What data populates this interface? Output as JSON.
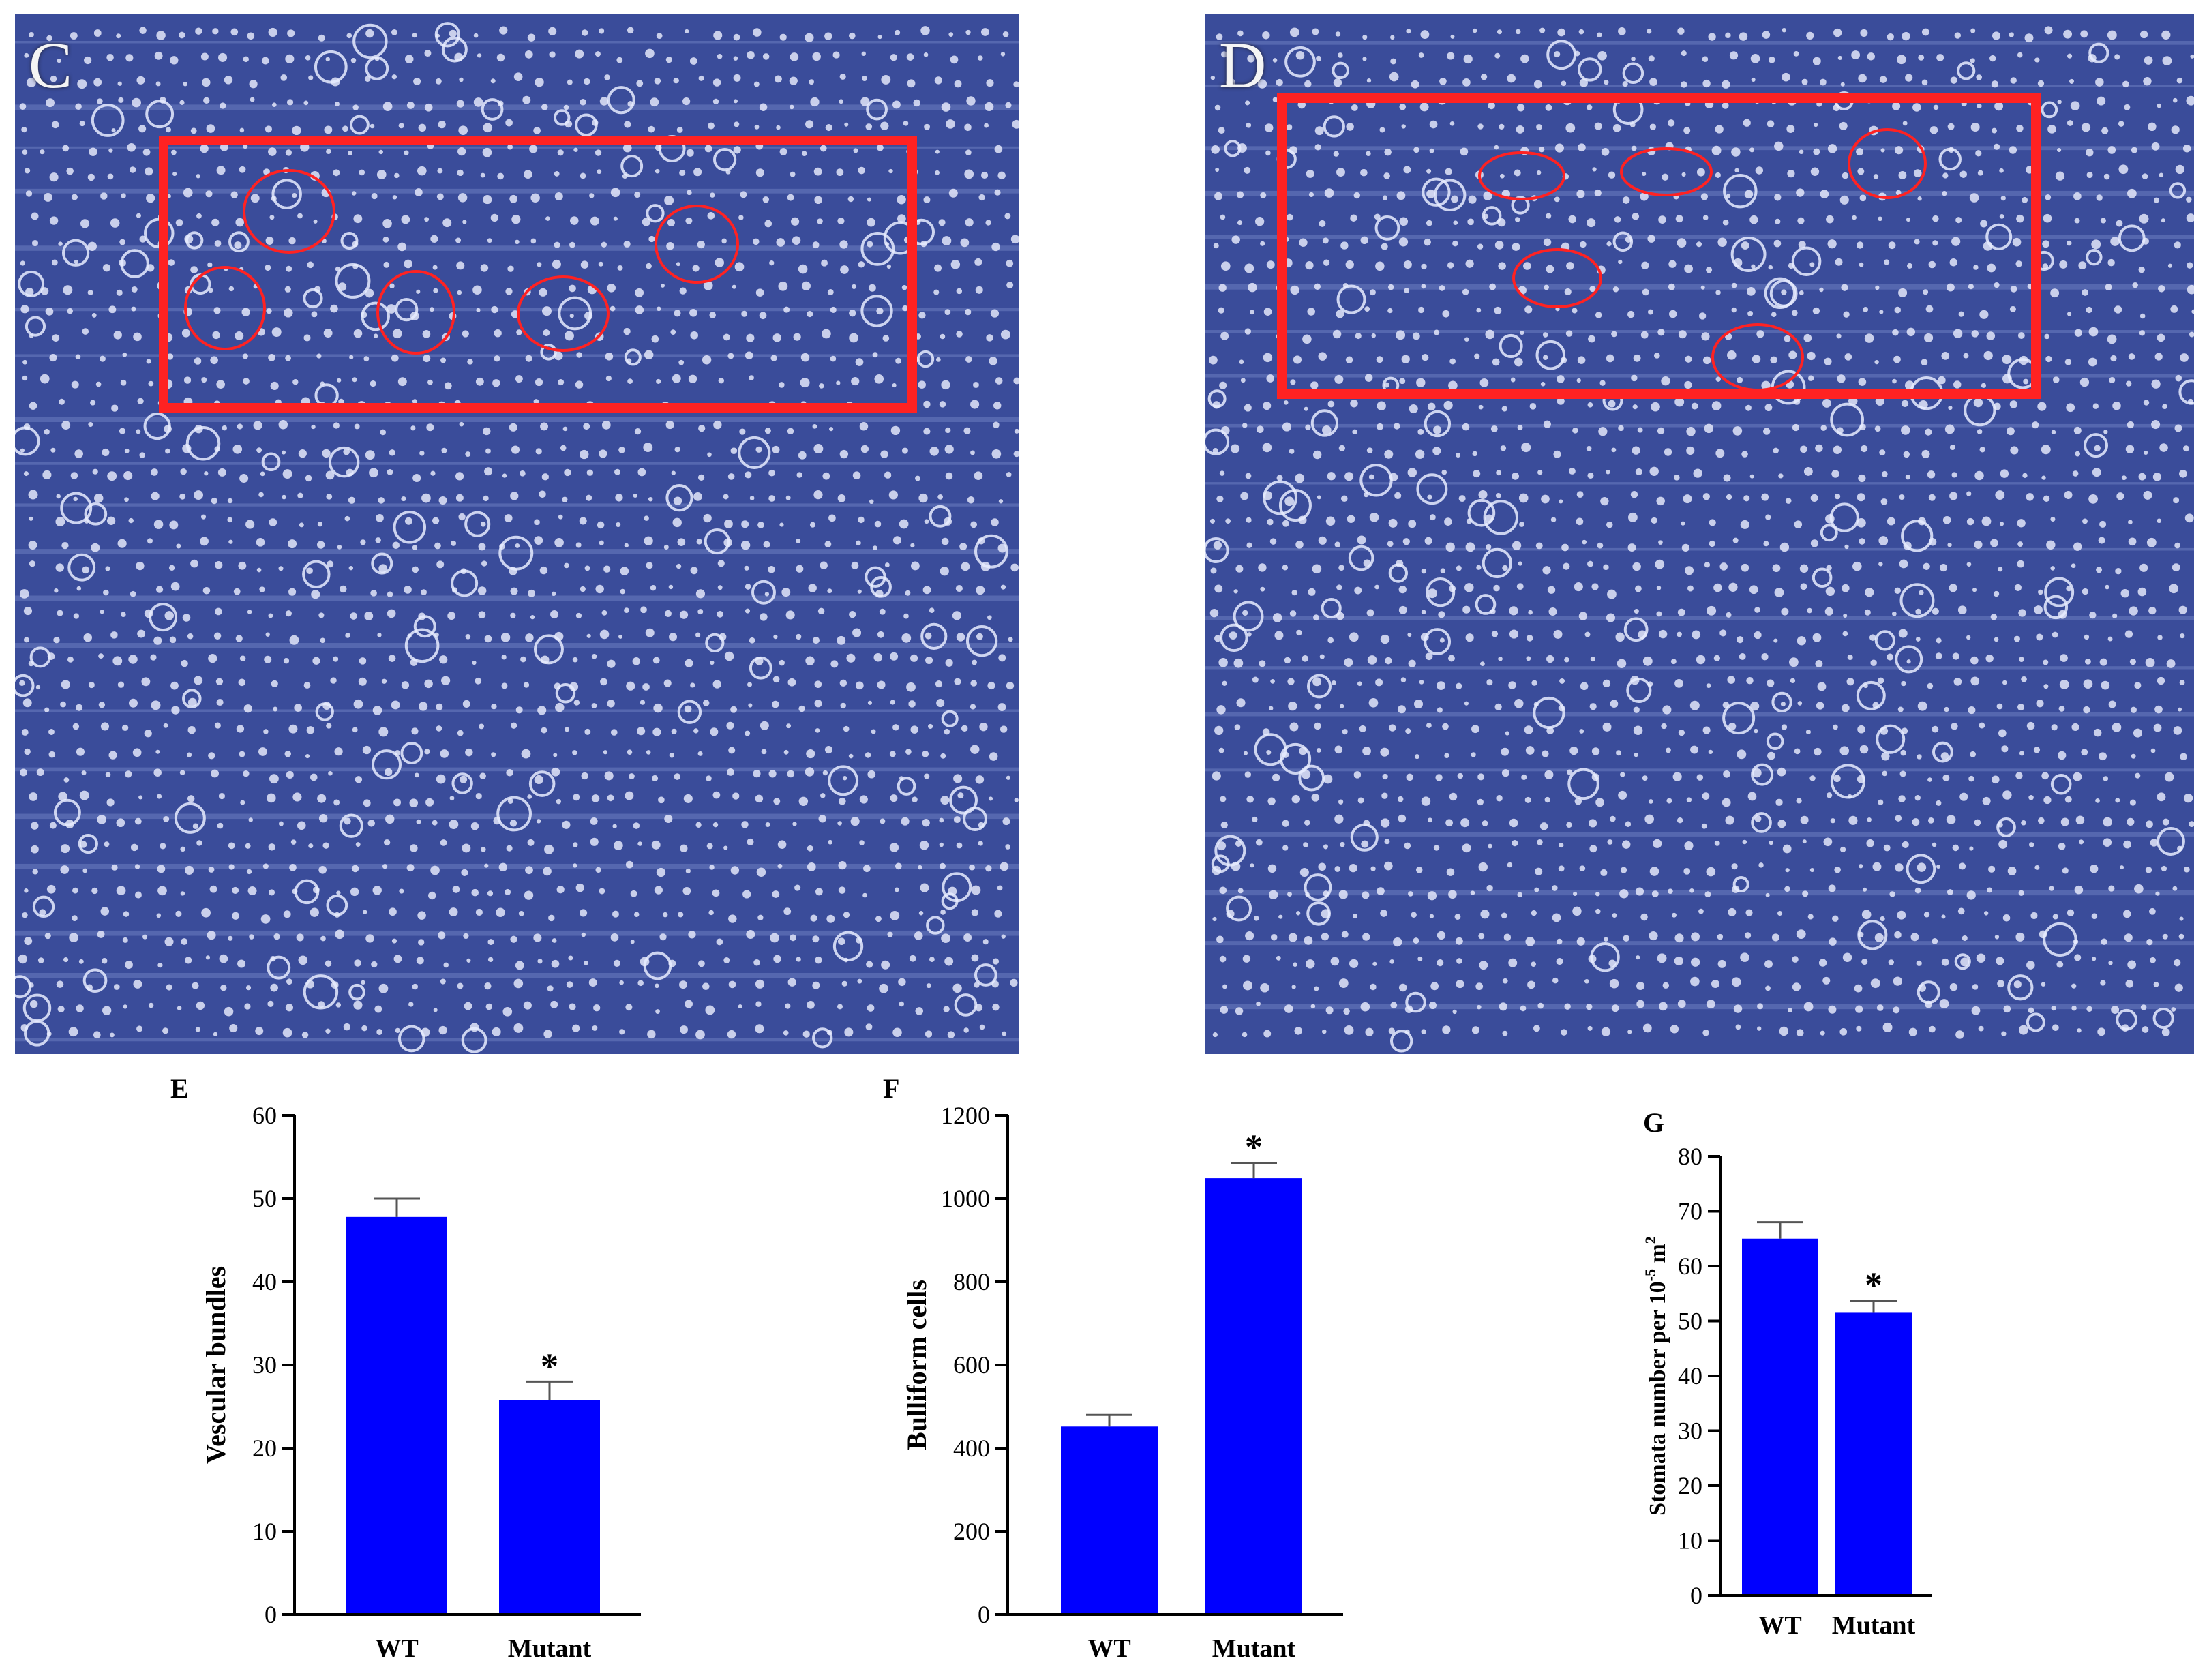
{
  "panels": [
    {
      "id": "C",
      "label": "C",
      "highlight": "#ff2222"
    },
    {
      "id": "D",
      "label": "D",
      "highlight": "#ff2222"
    }
  ],
  "colors": {
    "bar": "#0000ff",
    "micrograph_bg": "#3a4c9a",
    "axis": "#000000"
  },
  "chart_data": [
    {
      "letter": "E",
      "type": "bar",
      "categories": [
        "WT",
        "Mutant"
      ],
      "values": [
        47.8,
        25.8
      ],
      "errors": [
        2.2,
        2.2
      ],
      "significance": [
        "",
        "*"
      ],
      "ylabel": "Vescular bundles",
      "ylim": [
        0,
        60
      ],
      "yticks": [
        0,
        10,
        20,
        30,
        40,
        50,
        60
      ],
      "xlabel": "",
      "title": ""
    },
    {
      "letter": "F",
      "type": "bar",
      "categories": [
        "WT",
        "Mutant"
      ],
      "values": [
        452,
        1049
      ],
      "errors": [
        28,
        37
      ],
      "significance": [
        "",
        "*"
      ],
      "ylabel": "Bulliform cells",
      "ylim": [
        0,
        1200
      ],
      "yticks": [
        0,
        200,
        400,
        600,
        800,
        1000,
        1200
      ],
      "xlabel": "",
      "title": ""
    },
    {
      "letter": "G",
      "type": "bar",
      "categories": [
        "WT",
        "Mutant"
      ],
      "values": [
        65,
        51.5
      ],
      "errors": [
        3,
        2.2
      ],
      "significance": [
        "",
        "*"
      ],
      "ylabel": "Stomata number per 10",
      "ylabel_sup": "-5",
      "ylabel_tail": " m",
      "ylabel_sup2": "2",
      "ylim": [
        0,
        80
      ],
      "yticks": [
        0,
        10,
        20,
        30,
        40,
        50,
        60,
        70,
        80
      ],
      "xlabel": "",
      "title": ""
    }
  ]
}
